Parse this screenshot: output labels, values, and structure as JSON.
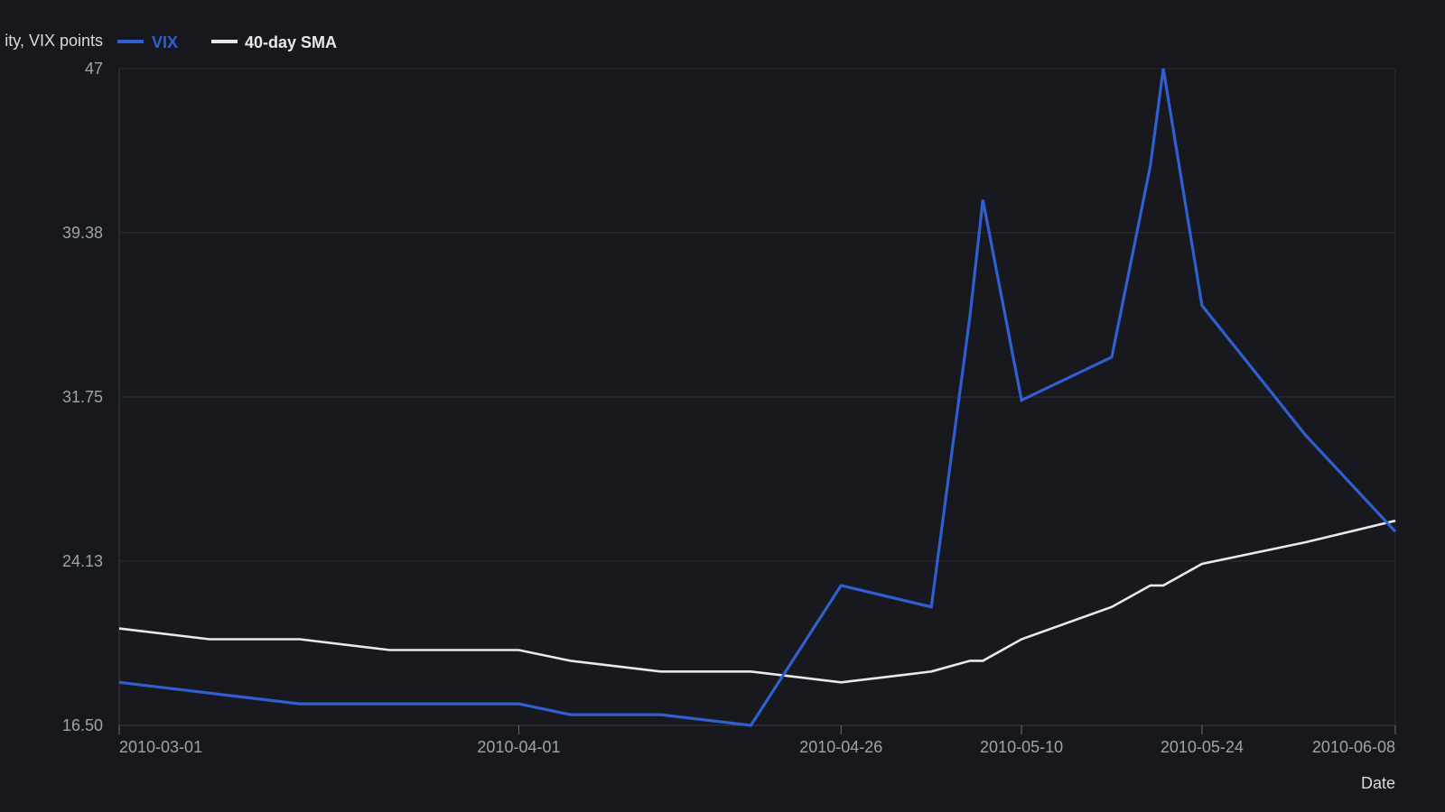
{
  "chart_data": {
    "type": "line",
    "ylabel": "Implied volatility, VIX points",
    "ylabel_visible": "ity, VIX points",
    "xlabel": "Date",
    "ylim": [
      16.5,
      47
    ],
    "yticks": [
      "16.50",
      "24.13",
      "31.75",
      "39.38",
      "47"
    ],
    "xticks": [
      "2010-03-01",
      "2010-04-01",
      "2010-04-26",
      "2010-05-10",
      "2010-05-24",
      "2010-06-08"
    ],
    "xlim": [
      "2010-03-01",
      "2010-06-08"
    ],
    "grid": true,
    "legend_position": "top-left",
    "series": [
      {
        "name": "VIX",
        "color": "#2f5fd0",
        "points": [
          [
            "2010-03-01",
            18.5
          ],
          [
            "2010-03-08",
            18.0
          ],
          [
            "2010-03-15",
            17.5
          ],
          [
            "2010-03-22",
            17.5
          ],
          [
            "2010-04-01",
            17.5
          ],
          [
            "2010-04-05",
            17.0
          ],
          [
            "2010-04-12",
            17.0
          ],
          [
            "2010-04-19",
            16.5
          ],
          [
            "2010-04-26",
            23.0
          ],
          [
            "2010-05-03",
            22.0
          ],
          [
            "2010-05-06",
            35.5
          ],
          [
            "2010-05-07",
            40.9
          ],
          [
            "2010-05-10",
            31.6
          ],
          [
            "2010-05-17",
            33.6
          ],
          [
            "2010-05-20",
            42.5
          ],
          [
            "2010-05-21",
            47.0
          ],
          [
            "2010-05-24",
            36.0
          ],
          [
            "2010-06-01",
            30.0
          ],
          [
            "2010-06-08",
            25.5
          ]
        ]
      },
      {
        "name": "40-day SMA",
        "color": "#e9e9e9",
        "points": [
          [
            "2010-03-01",
            21.0
          ],
          [
            "2010-03-08",
            20.5
          ],
          [
            "2010-03-15",
            20.5
          ],
          [
            "2010-03-22",
            20.0
          ],
          [
            "2010-04-01",
            20.0
          ],
          [
            "2010-04-05",
            19.5
          ],
          [
            "2010-04-12",
            19.0
          ],
          [
            "2010-04-19",
            19.0
          ],
          [
            "2010-04-26",
            18.5
          ],
          [
            "2010-05-03",
            19.0
          ],
          [
            "2010-05-06",
            19.5
          ],
          [
            "2010-05-07",
            19.5
          ],
          [
            "2010-05-10",
            20.5
          ],
          [
            "2010-05-17",
            22.0
          ],
          [
            "2010-05-20",
            23.0
          ],
          [
            "2010-05-21",
            23.0
          ],
          [
            "2010-05-24",
            24.0
          ],
          [
            "2010-06-01",
            25.0
          ],
          [
            "2010-06-08",
            26.0
          ]
        ]
      }
    ]
  }
}
